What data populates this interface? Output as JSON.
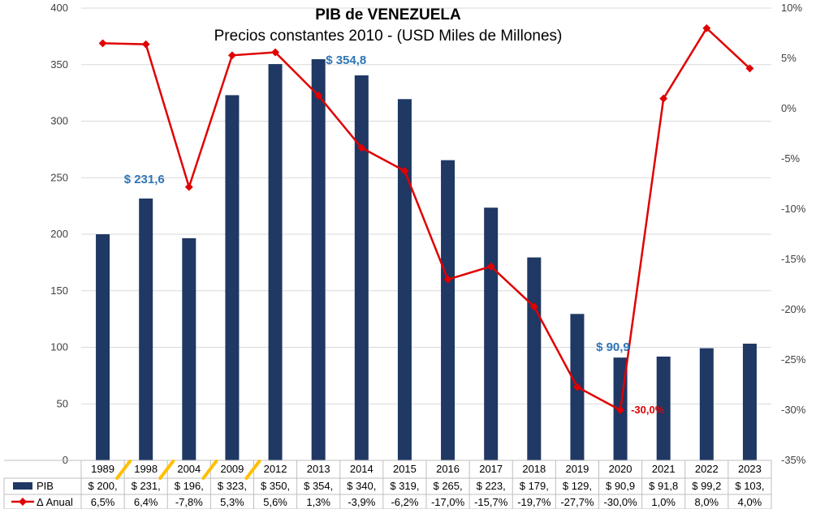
{
  "chart_data": {
    "type": "bar",
    "title": "PIB de VENEZUELA",
    "subtitle": "Precios constantes 2010 - (USD Miles de Millones)",
    "categories": [
      "1989",
      "1998",
      "2004",
      "2009",
      "2012",
      "2013",
      "2014",
      "2015",
      "2016",
      "2017",
      "2018",
      "2019",
      "2020",
      "2021",
      "2022",
      "2023"
    ],
    "series": [
      {
        "name": "PIB",
        "type": "bar",
        "axis": "left",
        "color": "#1f3864",
        "values": [
          200,
          231.6,
          196.5,
          323,
          350.5,
          354.8,
          340.5,
          319.5,
          265.5,
          223.5,
          179.5,
          129.5,
          90.9,
          91.8,
          99.2,
          103.2
        ]
      },
      {
        "name": "Δ Anual",
        "type": "line",
        "axis": "right",
        "color": "#e00000",
        "values": [
          6.5,
          6.4,
          -7.8,
          5.3,
          5.6,
          1.3,
          -3.9,
          -6.2,
          -17.0,
          -15.7,
          -19.7,
          -27.7,
          -30.0,
          1.0,
          8.0,
          4.0
        ]
      }
    ],
    "yleft": {
      "ylim": [
        0,
        400
      ],
      "ticks": [
        "0",
        "50",
        "100",
        "150",
        "200",
        "250",
        "300",
        "350",
        "400"
      ]
    },
    "yright": {
      "ylim": [
        -35,
        10
      ],
      "ticks": [
        "-35%",
        "-30%",
        "-25%",
        "-20%",
        "-15%",
        "-10%",
        "-5%",
        "0%",
        "5%",
        "10%"
      ]
    },
    "table": {
      "row_labels": [
        "PIB",
        "Δ Anual"
      ],
      "pib": [
        "$ 200,",
        "$ 231,",
        "$ 196,",
        "$ 323,",
        "$ 350,",
        "$ 354,",
        "$ 340,",
        "$ 319,",
        "$ 265,",
        "$ 223,",
        "$ 179,",
        "$ 129,",
        "$ 90,9",
        "$ 91,8",
        "$ 99,2",
        "$ 103,"
      ],
      "anual": [
        "6,5%",
        "6,4%",
        "-7,8%",
        "5,3%",
        "5,6%",
        "1,3%",
        "-3,9%",
        "-6,2%",
        "-17,0%",
        "-15,7%",
        "-19,7%",
        "-27,7%",
        "-30,0%",
        "1,0%",
        "8,0%",
        "4,0%"
      ]
    },
    "annotations": [
      {
        "text": "$ 231,6",
        "category": "1998",
        "color": "#2e75b6"
      },
      {
        "text": "$ 354,8",
        "category": "2013",
        "color": "#2e75b6"
      },
      {
        "text": "$ 90,9",
        "category": "2020",
        "color": "#2e75b6"
      },
      {
        "text": "-30,0%",
        "category": "2020",
        "color": "#e00000"
      }
    ],
    "axis_breaks_after": [
      "1989",
      "1998",
      "2004",
      "2009"
    ],
    "grid": true,
    "legend": "bottom-left (data table)"
  }
}
